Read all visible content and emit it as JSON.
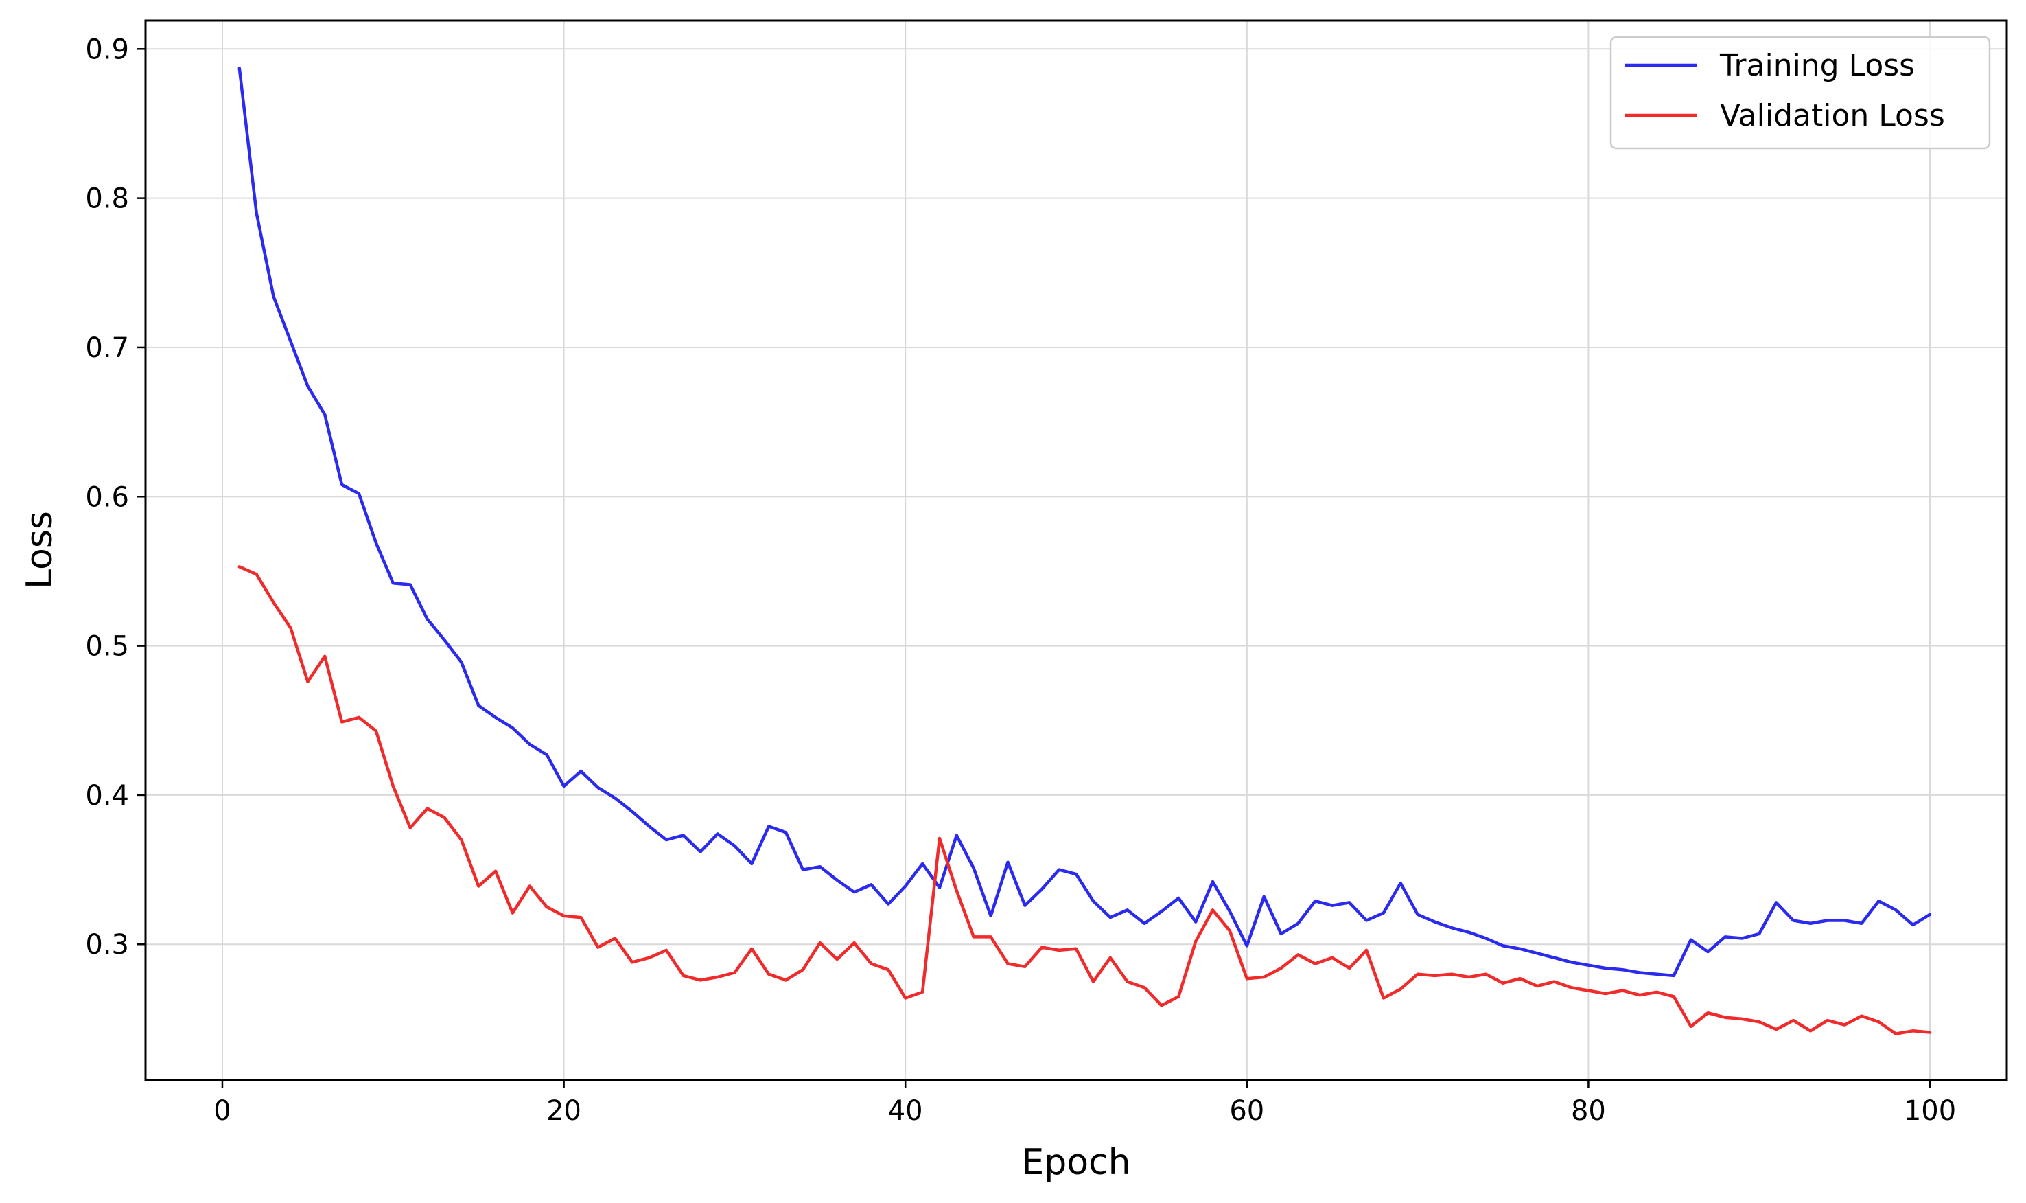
{
  "chart_data": {
    "type": "line",
    "title": "",
    "xlabel": "Epoch",
    "ylabel": "Loss",
    "xlim": [
      -4.5,
      104.5
    ],
    "ylim": [
      0.209,
      0.919
    ],
    "xticks": [
      0,
      20,
      40,
      60,
      80,
      100
    ],
    "yticks": [
      0.3,
      0.4,
      0.5,
      0.6,
      0.7,
      0.8,
      0.9
    ],
    "grid": true,
    "legend_position": "top-right",
    "x": [
      1,
      2,
      3,
      4,
      5,
      6,
      7,
      8,
      9,
      10,
      11,
      12,
      13,
      14,
      15,
      16,
      17,
      18,
      19,
      20,
      21,
      22,
      23,
      24,
      25,
      26,
      27,
      28,
      29,
      30,
      31,
      32,
      33,
      34,
      35,
      36,
      37,
      38,
      39,
      40,
      41,
      42,
      43,
      44,
      45,
      46,
      47,
      48,
      49,
      50,
      51,
      52,
      53,
      54,
      55,
      56,
      57,
      58,
      59,
      60,
      61,
      62,
      63,
      64,
      65,
      66,
      67,
      68,
      69,
      70,
      71,
      72,
      73,
      74,
      75,
      76,
      77,
      78,
      79,
      80,
      81,
      82,
      83,
      84,
      85,
      86,
      87,
      88,
      89,
      90,
      91,
      92,
      93,
      94,
      95,
      96,
      97,
      98,
      99,
      100
    ],
    "series": [
      {
        "name": "Training Loss",
        "color": "#2b2bef",
        "values": [
          0.887,
          0.79,
          0.734,
          0.704,
          0.674,
          0.655,
          0.608,
          0.602,
          0.569,
          0.542,
          0.541,
          0.518,
          0.504,
          0.489,
          0.46,
          0.452,
          0.445,
          0.434,
          0.427,
          0.406,
          0.416,
          0.405,
          0.398,
          0.389,
          0.379,
          0.37,
          0.373,
          0.362,
          0.374,
          0.366,
          0.354,
          0.379,
          0.375,
          0.35,
          0.352,
          0.343,
          0.335,
          0.34,
          0.327,
          0.339,
          0.354,
          0.338,
          0.373,
          0.351,
          0.319,
          0.355,
          0.326,
          0.337,
          0.35,
          0.347,
          0.329,
          0.318,
          0.323,
          0.314,
          0.322,
          0.331,
          0.315,
          0.342,
          0.322,
          0.299,
          0.332,
          0.307,
          0.314,
          0.329,
          0.326,
          0.328,
          0.316,
          0.321,
          0.341,
          0.32,
          0.315,
          0.311,
          0.308,
          0.304,
          0.299,
          0.297,
          0.294,
          0.291,
          0.288,
          0.286,
          0.284,
          0.283,
          0.281,
          0.28,
          0.279,
          0.303,
          0.295,
          0.305,
          0.304,
          0.307,
          0.328,
          0.316,
          0.314,
          0.316,
          0.316,
          0.314,
          0.329,
          0.323,
          0.313,
          0.32
        ]
      },
      {
        "name": "Validation Loss",
        "color": "#f02b2b",
        "values": [
          0.553,
          0.548,
          0.529,
          0.512,
          0.476,
          0.493,
          0.449,
          0.452,
          0.443,
          0.406,
          0.378,
          0.391,
          0.385,
          0.37,
          0.339,
          0.349,
          0.321,
          0.339,
          0.325,
          0.319,
          0.318,
          0.298,
          0.304,
          0.288,
          0.291,
          0.296,
          0.279,
          0.276,
          0.278,
          0.281,
          0.297,
          0.28,
          0.276,
          0.283,
          0.301,
          0.29,
          0.301,
          0.287,
          0.283,
          0.264,
          0.268,
          0.371,
          0.336,
          0.305,
          0.305,
          0.287,
          0.285,
          0.298,
          0.296,
          0.297,
          0.275,
          0.291,
          0.275,
          0.271,
          0.259,
          0.265,
          0.302,
          0.323,
          0.309,
          0.277,
          0.278,
          0.284,
          0.293,
          0.287,
          0.291,
          0.284,
          0.296,
          0.264,
          0.27,
          0.28,
          0.279,
          0.28,
          0.278,
          0.28,
          0.274,
          0.277,
          0.272,
          0.275,
          0.271,
          0.269,
          0.267,
          0.269,
          0.266,
          0.268,
          0.265,
          0.245,
          0.254,
          0.251,
          0.25,
          0.248,
          0.243,
          0.249,
          0.242,
          0.249,
          0.246,
          0.252,
          0.248,
          0.24,
          0.242,
          0.241
        ]
      }
    ]
  }
}
